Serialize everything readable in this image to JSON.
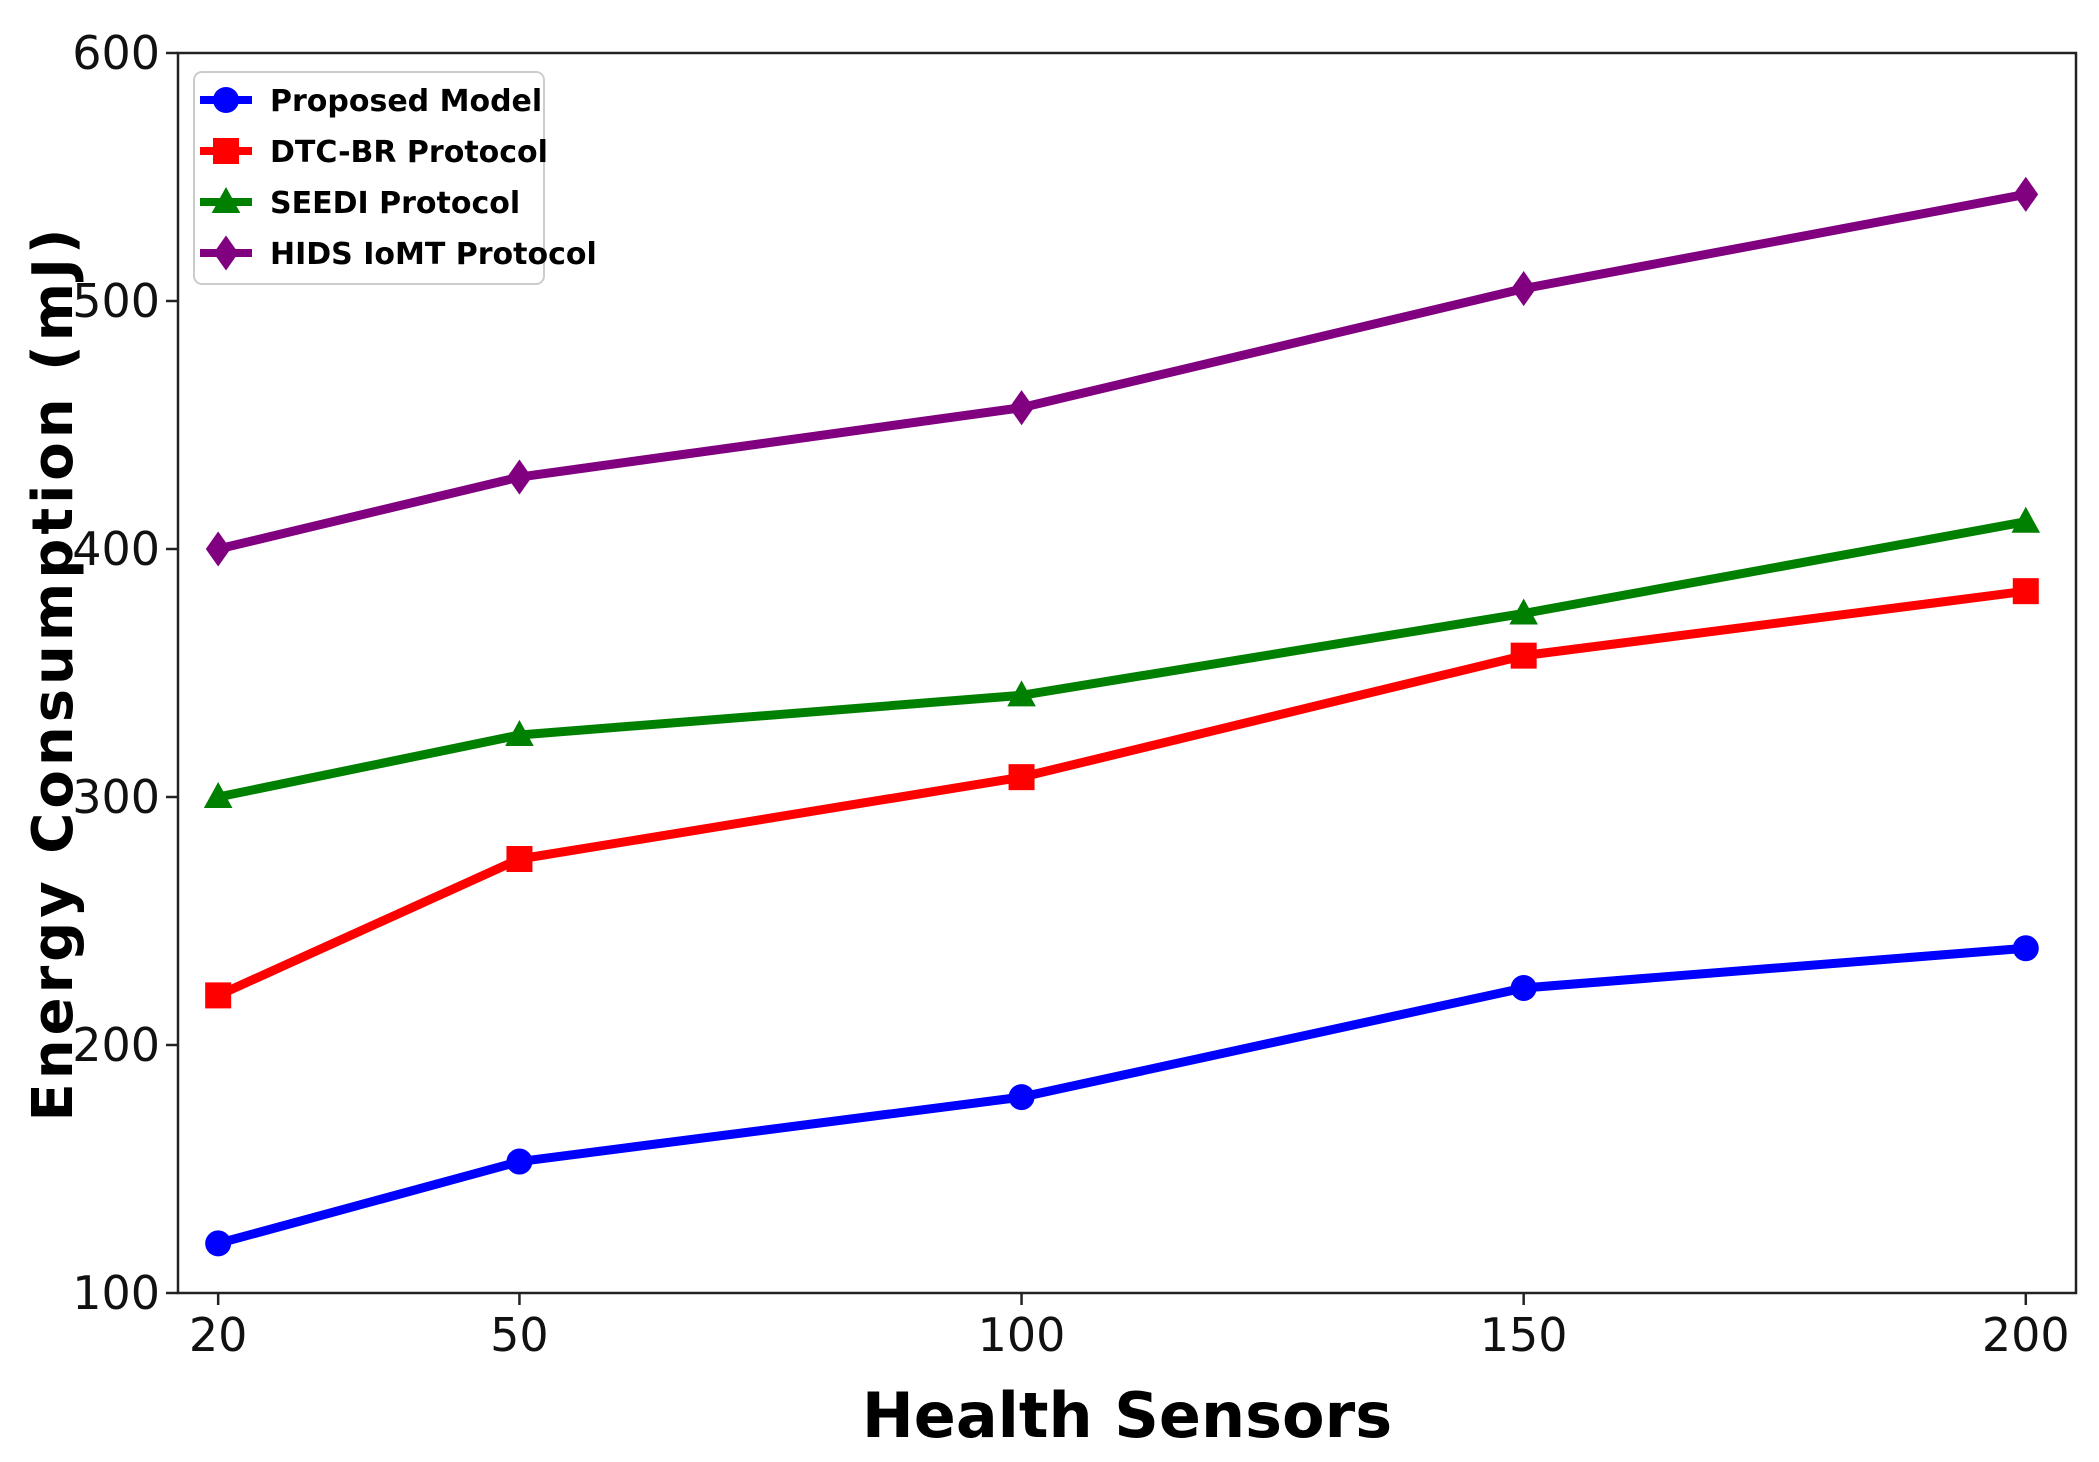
{
  "chart_data": {
    "type": "line",
    "title": "",
    "xlabel": "Health Sensors",
    "ylabel": "Energy Consumption (mJ)",
    "x": [
      20,
      50,
      100,
      150,
      200
    ],
    "x_ticks": [
      "20",
      "50",
      "100",
      "150",
      "200"
    ],
    "xlim": [
      16,
      205
    ],
    "ylim": [
      100,
      600
    ],
    "y_ticks": [
      "100",
      "200",
      "300",
      "400",
      "500",
      "600"
    ],
    "grid": false,
    "legend_position": "top-left",
    "series": [
      {
        "name": "Proposed Model",
        "values": [
          120,
          153,
          179,
          223,
          239
        ],
        "color": "#0000ff",
        "marker": "circle"
      },
      {
        "name": "DTC-BR Protocol",
        "values": [
          220,
          275,
          308,
          357,
          383
        ],
        "color": "#ff0000",
        "marker": "square"
      },
      {
        "name": "SEEDI Protocol",
        "values": [
          300,
          325,
          341,
          374,
          411
        ],
        "color": "#008000",
        "marker": "triangle"
      },
      {
        "name": "HIDS IoMT Protocol",
        "values": [
          400,
          429,
          457,
          505,
          543
        ],
        "color": "#800080",
        "marker": "diamond"
      }
    ]
  }
}
